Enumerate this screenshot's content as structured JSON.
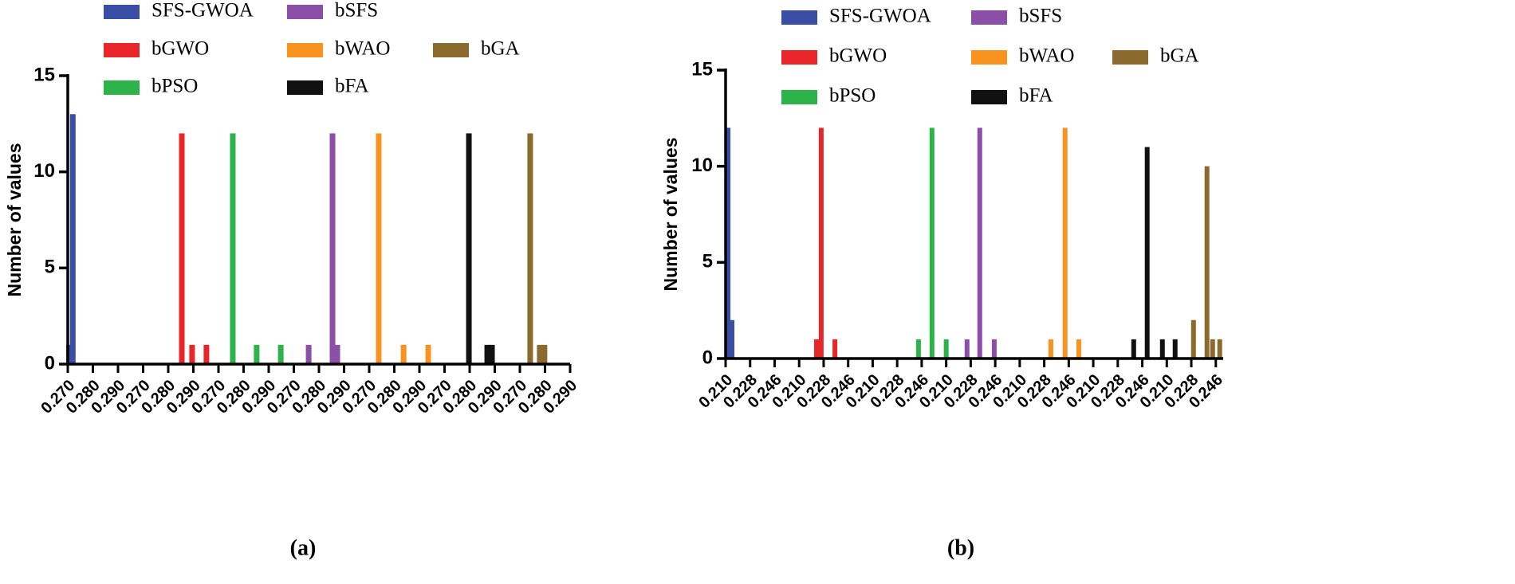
{
  "chart_data": [
    {
      "type": "bar",
      "caption": "(a)",
      "ylabel": "Number of values",
      "ylim": [
        0,
        15
      ],
      "yticks": [
        0,
        5,
        10,
        15
      ],
      "xlim": [
        0,
        20
      ],
      "xticks": [
        {
          "value": 0,
          "label": "0.270"
        },
        {
          "value": 1,
          "label": "0.280"
        },
        {
          "value": 2,
          "label": "0.290"
        },
        {
          "value": 3,
          "label": "0.270"
        },
        {
          "value": 4,
          "label": "0.280"
        },
        {
          "value": 5,
          "label": "0.290"
        },
        {
          "value": 6,
          "label": "0.270"
        },
        {
          "value": 7,
          "label": "0.280"
        },
        {
          "value": 8,
          "label": "0.290"
        },
        {
          "value": 9,
          "label": "0.270"
        },
        {
          "value": 10,
          "label": "0.280"
        },
        {
          "value": 11,
          "label": "0.290"
        },
        {
          "value": 12,
          "label": "0.270"
        },
        {
          "value": 13,
          "label": "0.280"
        },
        {
          "value": 14,
          "label": "0.290"
        },
        {
          "value": 15,
          "label": "0.270"
        },
        {
          "value": 16,
          "label": "0.280"
        },
        {
          "value": 17,
          "label": "0.290"
        },
        {
          "value": 18,
          "label": "0.270"
        },
        {
          "value": 19,
          "label": "0.280"
        },
        {
          "value": 20,
          "label": "0.290"
        }
      ],
      "series": [
        {
          "name": "SFS-GWOA",
          "color": "#3b4ea6",
          "x": [
            0.05,
            0.2
          ],
          "values": [
            1,
            13
          ]
        },
        {
          "name": "bGWO",
          "color": "#e8262a",
          "x": [
            4.54,
            4.95,
            5.52
          ],
          "values": [
            12,
            1,
            1
          ]
        },
        {
          "name": "bPSO",
          "color": "#2db34a",
          "x": [
            6.57,
            7.52,
            8.48
          ],
          "values": [
            12,
            1,
            1
          ]
        },
        {
          "name": "bSFS",
          "color": "#8b4fa8",
          "x": [
            9.59,
            10.54,
            10.73
          ],
          "values": [
            1,
            12,
            1
          ]
        },
        {
          "name": "bWAO",
          "color": "#f7931e",
          "x": [
            12.38,
            13.37,
            14.35
          ],
          "values": [
            12,
            1,
            1
          ]
        },
        {
          "name": "bFA",
          "color": "#111111",
          "x": [
            15.97,
            16.7,
            16.89
          ],
          "values": [
            12,
            1,
            1
          ]
        },
        {
          "name": "bGA",
          "color": "#8b6a2e",
          "x": [
            18.41,
            18.79,
            18.98
          ],
          "values": [
            12,
            1,
            1
          ]
        }
      ]
    },
    {
      "type": "bar",
      "caption": "(b)",
      "ylabel": "Number of values",
      "ylim": [
        0,
        15
      ],
      "yticks": [
        0,
        5,
        10,
        15
      ],
      "xlim": [
        0,
        20.3
      ],
      "xticks": [
        {
          "value": 0,
          "label": "0.210"
        },
        {
          "value": 1,
          "label": "0.228"
        },
        {
          "value": 2,
          "label": "0.246"
        },
        {
          "value": 3,
          "label": "0.210"
        },
        {
          "value": 4,
          "label": "0.228"
        },
        {
          "value": 5,
          "label": "0.246"
        },
        {
          "value": 6,
          "label": "0.210"
        },
        {
          "value": 7,
          "label": "0.228"
        },
        {
          "value": 8,
          "label": "0.246"
        },
        {
          "value": 9,
          "label": "0.210"
        },
        {
          "value": 10,
          "label": "0.228"
        },
        {
          "value": 11,
          "label": "0.246"
        },
        {
          "value": 12,
          "label": "0.210"
        },
        {
          "value": 13,
          "label": "0.228"
        },
        {
          "value": 14,
          "label": "0.246"
        },
        {
          "value": 15,
          "label": "0.210"
        },
        {
          "value": 16,
          "label": "0.228"
        },
        {
          "value": 17,
          "label": "0.246"
        },
        {
          "value": 18,
          "label": "0.210"
        },
        {
          "value": 19,
          "label": "0.228"
        },
        {
          "value": 20,
          "label": "0.246"
        }
      ],
      "series": [
        {
          "name": "SFS-GWOA",
          "color": "#3b4ea6",
          "x": [
            0.1,
            0.26
          ],
          "values": [
            12,
            2
          ]
        },
        {
          "name": "bGWO",
          "color": "#e8262a",
          "x": [
            3.71,
            3.9,
            4.46
          ],
          "values": [
            1,
            12,
            1
          ]
        },
        {
          "name": "bPSO",
          "color": "#2db34a",
          "x": [
            7.87,
            8.42,
            9.0
          ],
          "values": [
            1,
            12,
            1
          ]
        },
        {
          "name": "bSFS",
          "color": "#8b4fa8",
          "x": [
            9.85,
            10.37,
            10.96
          ],
          "values": [
            1,
            12,
            1
          ]
        },
        {
          "name": "bWAO",
          "color": "#f7931e",
          "x": [
            13.27,
            13.85,
            14.41
          ],
          "values": [
            1,
            12,
            1
          ]
        },
        {
          "name": "bFA",
          "color": "#111111",
          "x": [
            16.65,
            17.2,
            17.82,
            18.34
          ],
          "values": [
            1,
            11,
            1,
            1
          ]
        },
        {
          "name": "bGA",
          "color": "#8b6a2e",
          "x": [
            19.09,
            19.64,
            19.87,
            20.16
          ],
          "values": [
            2,
            10,
            1,
            1
          ]
        }
      ]
    }
  ]
}
